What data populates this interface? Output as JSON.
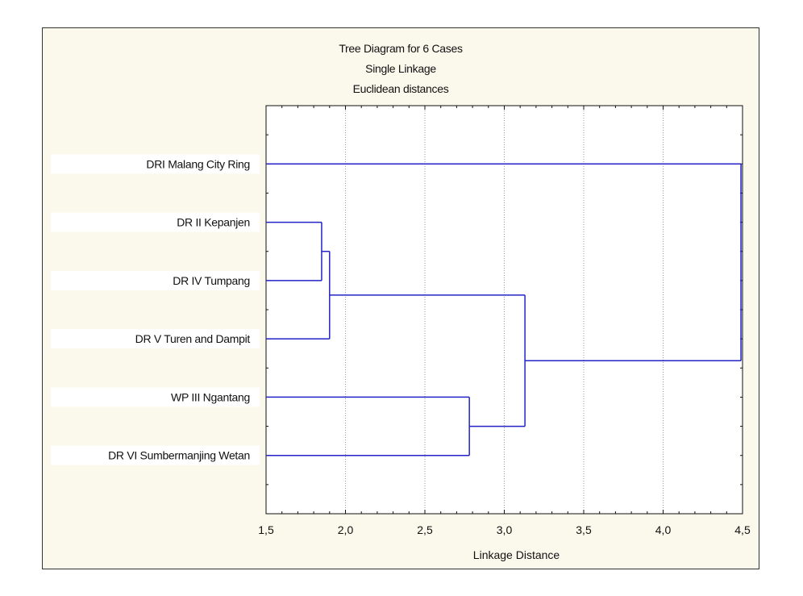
{
  "chart_data": {
    "type": "dendrogram",
    "title_lines": [
      "Tree Diagram for 6 Cases",
      "Single Linkage",
      "Euclidean distances"
    ],
    "xlabel": "Linkage Distance",
    "xlim": [
      1.5,
      4.5
    ],
    "xticks": [
      "1,5",
      "2,0",
      "2,5",
      "3,0",
      "3,5",
      "4,0",
      "4,5"
    ],
    "xtick_values": [
      1.5,
      2.0,
      2.5,
      3.0,
      3.5,
      4.0,
      4.5
    ],
    "grid": "vertical dotted",
    "leaves": [
      "DRI Malang City Ring",
      "DR II Kepanjen",
      "DR IV Tumpang",
      "DR V Turen and Dampit",
      "WP III Ngantang",
      "DR VI Sumbermanjing Wetan"
    ],
    "merges": [
      {
        "members": [
          "DR II Kepanjen",
          "DR IV Tumpang"
        ],
        "distance": 1.85
      },
      {
        "members": [
          "DR II Kepanjen",
          "DR IV Tumpang",
          "DR V Turen and Dampit"
        ],
        "distance": 1.9
      },
      {
        "members": [
          "WP III Ngantang",
          "DR VI Sumbermanjing Wetan"
        ],
        "distance": 2.78
      },
      {
        "members": [
          "DR II Kepanjen",
          "DR IV Tumpang",
          "DR V Turen and Dampit",
          "WP III Ngantang",
          "DR VI Sumbermanjing Wetan"
        ],
        "distance": 3.13
      },
      {
        "members": [
          "DRI Malang City Ring",
          "DR II Kepanjen",
          "DR IV Tumpang",
          "DR V Turen and Dampit",
          "WP III Ngantang",
          "DR VI Sumbermanjing Wetan"
        ],
        "distance": 4.49
      }
    ],
    "line_color": "#2323c8"
  }
}
